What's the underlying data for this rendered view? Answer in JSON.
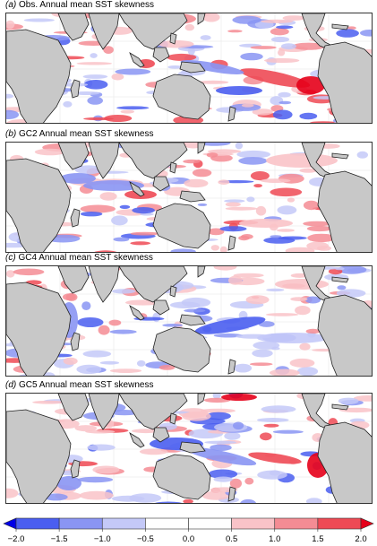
{
  "panels": [
    {
      "id": "a",
      "letter": "(a)",
      "title": "Obs. Annual mean SST skewness"
    },
    {
      "id": "b",
      "letter": "(b)",
      "title": "GC2 Annual mean SST skewness"
    },
    {
      "id": "c",
      "letter": "(c)",
      "title": "GC4 Annual mean SST skewness"
    },
    {
      "id": "d",
      "letter": "(d)",
      "title": "GC5 Annual mean SST skewness"
    }
  ],
  "colorbar": {
    "ticks": [
      "−2.0",
      "−1.5",
      "−1.0",
      "−0.5",
      "0.0",
      "0.5",
      "1.0",
      "1.5",
      "2.0"
    ],
    "levels": [
      -2.0,
      -1.5,
      -1.0,
      -0.5,
      0.0,
      0.5,
      1.0,
      1.5,
      2.0
    ],
    "colors": [
      "#0000e6",
      "#4a5ef0",
      "#8a95f3",
      "#c4c9f8",
      "#ffffff",
      "#ffffff",
      "#f9c3c8",
      "#f48c94",
      "#ee4a55",
      "#e6001a"
    ]
  },
  "colors": {
    "land": "#c8c8c8",
    "coast": "#222222",
    "frame": "#333333"
  }
}
